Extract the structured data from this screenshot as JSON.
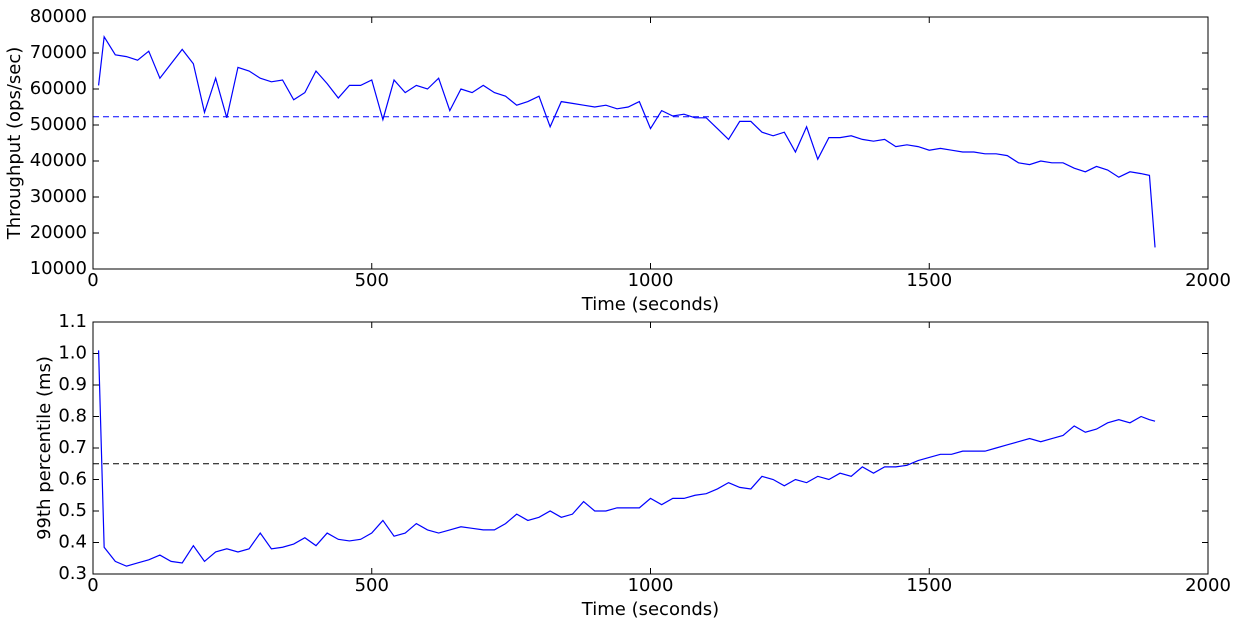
{
  "chart_data": [
    {
      "type": "line",
      "ylabel": "Throughput (ops/sec)",
      "xlabel": "Time (seconds)",
      "color": "#0000ff",
      "xlim": [
        0,
        2000
      ],
      "xticks": [
        0,
        500,
        1000,
        1500,
        2000
      ],
      "ylim": [
        10000,
        80000
      ],
      "yticks": [
        10000,
        20000,
        30000,
        40000,
        50000,
        60000,
        70000,
        80000
      ],
      "reference_line": 52300,
      "reference_color": "#0000ff",
      "x": [
        10,
        20,
        40,
        60,
        80,
        100,
        120,
        140,
        160,
        180,
        200,
        220,
        240,
        260,
        280,
        300,
        320,
        340,
        360,
        380,
        400,
        420,
        440,
        460,
        480,
        500,
        520,
        540,
        560,
        580,
        600,
        620,
        640,
        660,
        680,
        700,
        720,
        740,
        760,
        780,
        800,
        820,
        840,
        860,
        880,
        900,
        920,
        940,
        960,
        980,
        1000,
        1020,
        1040,
        1060,
        1080,
        1100,
        1120,
        1140,
        1160,
        1180,
        1200,
        1220,
        1240,
        1260,
        1280,
        1300,
        1320,
        1340,
        1360,
        1380,
        1400,
        1420,
        1440,
        1460,
        1480,
        1500,
        1520,
        1540,
        1560,
        1580,
        1600,
        1620,
        1640,
        1660,
        1680,
        1700,
        1720,
        1740,
        1760,
        1780,
        1800,
        1820,
        1840,
        1860,
        1880,
        1895,
        1905
      ],
      "values": [
        61000,
        74500,
        69500,
        69000,
        68000,
        70500,
        63000,
        67000,
        71000,
        67000,
        53500,
        63000,
        52000,
        66000,
        65000,
        63000,
        62000,
        62500,
        57000,
        59000,
        65000,
        61500,
        57500,
        61000,
        61000,
        62500,
        51500,
        62500,
        59000,
        61000,
        60000,
        63000,
        54000,
        60000,
        59000,
        61000,
        59000,
        58000,
        55500,
        56500,
        58000,
        49500,
        56500,
        56000,
        55500,
        55000,
        55500,
        54500,
        55000,
        56500,
        49000,
        54000,
        52500,
        53000,
        52000,
        52000,
        49000,
        46000,
        51000,
        51000,
        48000,
        47000,
        48000,
        42500,
        49500,
        40500,
        46500,
        46500,
        47000,
        46000,
        45500,
        46000,
        44000,
        44500,
        44000,
        43000,
        43500,
        43000,
        42500,
        42500,
        42000,
        42000,
        41500,
        39500,
        39000,
        40000,
        39500,
        39500,
        38000,
        37000,
        38500,
        37500,
        35500,
        37000,
        36500,
        36000,
        16000
      ]
    },
    {
      "type": "line",
      "ylabel": "99th percentile (ms)",
      "xlabel": "Time (seconds)",
      "color": "#0000ff",
      "xlim": [
        0,
        2000
      ],
      "xticks": [
        0,
        500,
        1000,
        1500,
        2000
      ],
      "ylim": [
        0.3,
        1.1
      ],
      "yticks": [
        0.3,
        0.4,
        0.5,
        0.6,
        0.7,
        0.8,
        0.9,
        {
          "value": 1,
          "label": "1.0"
        },
        1.1
      ],
      "reference_line": 0.65,
      "reference_color": "#000000",
      "x": [
        10,
        20,
        40,
        60,
        80,
        100,
        120,
        140,
        160,
        180,
        200,
        220,
        240,
        260,
        280,
        300,
        320,
        340,
        360,
        380,
        400,
        420,
        440,
        460,
        480,
        500,
        520,
        540,
        560,
        580,
        600,
        620,
        640,
        660,
        680,
        700,
        720,
        740,
        760,
        780,
        800,
        820,
        840,
        860,
        880,
        900,
        920,
        940,
        960,
        980,
        1000,
        1020,
        1040,
        1060,
        1080,
        1100,
        1120,
        1140,
        1160,
        1180,
        1200,
        1220,
        1240,
        1260,
        1280,
        1300,
        1320,
        1340,
        1360,
        1380,
        1400,
        1420,
        1440,
        1460,
        1480,
        1500,
        1520,
        1540,
        1560,
        1580,
        1600,
        1620,
        1640,
        1660,
        1680,
        1700,
        1720,
        1740,
        1760,
        1780,
        1800,
        1820,
        1840,
        1860,
        1880,
        1895,
        1905
      ],
      "values": [
        1.01,
        0.385,
        0.34,
        0.325,
        0.335,
        0.345,
        0.36,
        0.34,
        0.335,
        0.39,
        0.34,
        0.37,
        0.38,
        0.37,
        0.38,
        0.43,
        0.38,
        0.385,
        0.395,
        0.415,
        0.39,
        0.43,
        0.41,
        0.405,
        0.41,
        0.43,
        0.47,
        0.42,
        0.43,
        0.46,
        0.44,
        0.43,
        0.44,
        0.45,
        0.445,
        0.44,
        0.44,
        0.46,
        0.49,
        0.47,
        0.48,
        0.5,
        0.48,
        0.49,
        0.53,
        0.5,
        0.5,
        0.51,
        0.51,
        0.51,
        0.54,
        0.52,
        0.54,
        0.54,
        0.55,
        0.555,
        0.57,
        0.59,
        0.575,
        0.57,
        0.61,
        0.6,
        0.58,
        0.6,
        0.59,
        0.61,
        0.6,
        0.62,
        0.61,
        0.64,
        0.62,
        0.64,
        0.64,
        0.645,
        0.66,
        0.67,
        0.68,
        0.68,
        0.69,
        0.69,
        0.69,
        0.7,
        0.71,
        0.72,
        0.73,
        0.72,
        0.73,
        0.74,
        0.77,
        0.75,
        0.76,
        0.78,
        0.79,
        0.78,
        0.8,
        0.79,
        0.785
      ]
    }
  ]
}
